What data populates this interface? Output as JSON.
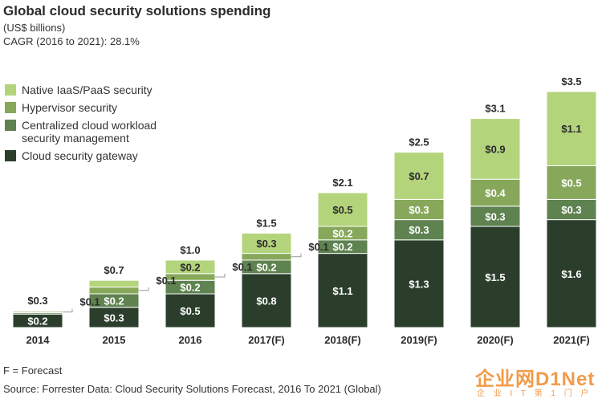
{
  "colors": {
    "native": "#b4d47c",
    "hypervisor": "#87a85a",
    "centralized": "#5e8250",
    "gateway": "#2b3e2c",
    "leader": "#999999"
  },
  "header": {
    "title": "Global cloud security solutions spending",
    "units": "(US$ billions)",
    "cagr": "CAGR (2016 to 2021): 28.1%"
  },
  "legend": [
    {
      "label": "Native IaaS/PaaS security",
      "color": "#b4d47c"
    },
    {
      "label": "Hypervisor security",
      "color": "#87a85a"
    },
    {
      "label": "Centralized cloud workload security management",
      "color": "#5e8250"
    },
    {
      "label": "Cloud security gateway",
      "color": "#2b3e2c"
    }
  ],
  "chart_data": {
    "type": "bar",
    "stacked": true,
    "categories": [
      "2014",
      "2015",
      "2016",
      "2017(F)",
      "2018(F)",
      "2019(F)",
      "2020(F)",
      "2021(F)"
    ],
    "series": [
      {
        "name": "Cloud security gateway",
        "values": [
          0.2,
          0.3,
          0.5,
          0.8,
          1.1,
          1.3,
          1.5,
          1.6
        ],
        "labels": [
          "$0.2",
          "$0.3",
          "$0.5",
          "$0.8",
          "$1.1",
          "$1.3",
          "$1.5",
          "$1.6"
        ]
      },
      {
        "name": "Centralized cloud workload security management",
        "values": [
          0.02,
          0.2,
          0.2,
          0.2,
          0.2,
          0.3,
          0.3,
          0.3
        ],
        "labels": [
          "",
          "$0.2",
          "$0.2",
          "$0.2",
          "$0.2",
          "$0.3",
          "$0.3",
          "$0.3"
        ]
      },
      {
        "name": "Hypervisor security",
        "values": [
          0.02,
          0.1,
          0.1,
          0.1,
          0.2,
          0.3,
          0.4,
          0.5
        ],
        "labels": [
          "",
          "",
          "",
          "",
          "$0.2",
          "$0.3",
          "$0.4",
          "$0.5"
        ]
      },
      {
        "name": "Native IaaS/PaaS security",
        "values": [
          0.01,
          0.1,
          0.2,
          0.3,
          0.5,
          0.7,
          0.9,
          1.1
        ],
        "labels": [
          "",
          "",
          "$0.2",
          "$0.3",
          "$0.5",
          "$0.7",
          "$0.9",
          "$1.1"
        ]
      }
    ],
    "totals": [
      "$0.3",
      "$0.7",
      "$1.0",
      "$1.5",
      "$2.1",
      "$2.5",
      "$3.1",
      "$3.5"
    ],
    "callouts": [
      {
        "category": "2014",
        "text": "$0.1"
      },
      {
        "category": "2015",
        "text": "$0.1"
      },
      {
        "category": "2016",
        "text": "$0.1"
      },
      {
        "category": "2017(F)",
        "text": "$0.1"
      }
    ],
    "ylim": [
      0,
      3.5
    ],
    "grid": false,
    "legend_position": "top-left"
  },
  "footer": {
    "note": "F = Forecast",
    "source": "Source: Forrester Data: Cloud Security Solutions Forecast, 2016 To 2021 (Global)"
  },
  "watermark": {
    "text": "企业网D1Net",
    "sub": "企 业 I T 第 1 门 户"
  }
}
